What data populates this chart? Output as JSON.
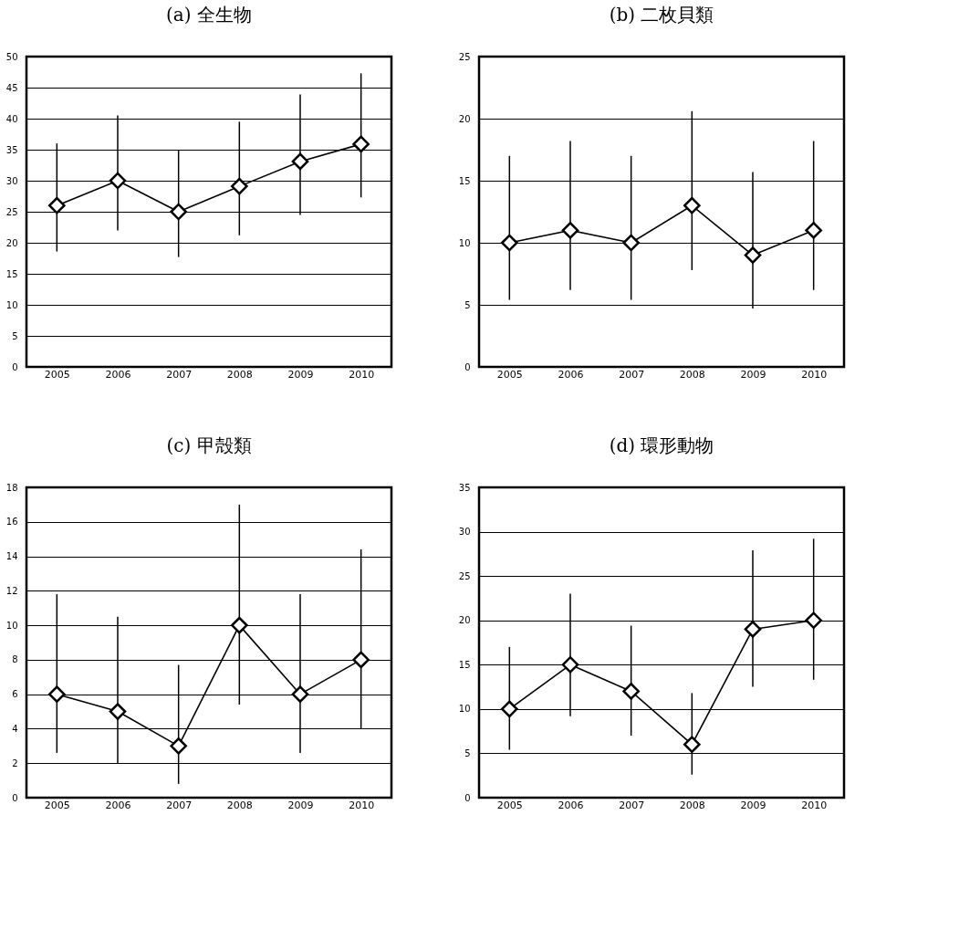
{
  "chart_data": [
    {
      "type": "line",
      "title": "(a) 全生物",
      "categories": [
        "2005",
        "2006",
        "2007",
        "2008",
        "2009",
        "2010"
      ],
      "series": [
        {
          "color": "#000000",
          "values": [
            26,
            30,
            25,
            29.1,
            33.1,
            35.9
          ],
          "errors": [
            [
              18.6,
              36.0
            ],
            [
              22.0,
              40.5
            ],
            [
              17.7,
              35.0
            ],
            [
              21.2,
              39.5
            ],
            [
              24.5,
              43.9
            ],
            [
              27.3,
              47.3
            ]
          ]
        }
      ],
      "ylim": [
        0,
        50
      ],
      "yticks": [
        0,
        5,
        10,
        15,
        20,
        25,
        30,
        35,
        40,
        45,
        50
      ],
      "grid": "y",
      "marker": "diamond",
      "line_style": "solid"
    },
    {
      "type": "line",
      "title": "(b) 二枚貝類",
      "categories": [
        "2005",
        "2006",
        "2007",
        "2008",
        "2009",
        "2010"
      ],
      "series": [
        {
          "color": "#000000",
          "values": [
            10,
            11,
            10,
            13,
            9,
            11
          ],
          "errors": [
            [
              5.4,
              17.0
            ],
            [
              6.2,
              18.2
            ],
            [
              5.4,
              17.0
            ],
            [
              7.8,
              20.6
            ],
            [
              4.7,
              15.7
            ],
            [
              6.2,
              18.2
            ]
          ]
        }
      ],
      "ylim": [
        0,
        25
      ],
      "yticks": [
        0,
        5,
        10,
        15,
        20,
        25
      ],
      "grid": "y",
      "marker": "diamond",
      "line_style": "solid"
    },
    {
      "type": "line",
      "title": "(c) 甲殻類",
      "categories": [
        "2005",
        "2006",
        "2007",
        "2008",
        "2009",
        "2010"
      ],
      "series": [
        {
          "color": "#000000",
          "values": [
            6,
            5,
            3,
            10,
            6,
            8
          ],
          "errors": [
            [
              2.6,
              11.8
            ],
            [
              2.0,
              10.5
            ],
            [
              0.8,
              7.7
            ],
            [
              5.4,
              17.0
            ],
            [
              2.6,
              11.8
            ],
            [
              4.0,
              14.4
            ]
          ]
        }
      ],
      "ylim": [
        0,
        18
      ],
      "yticks": [
        0,
        2,
        4,
        6,
        8,
        10,
        12,
        14,
        16,
        18
      ],
      "grid": "y",
      "marker": "diamond",
      "line_style": "solid"
    },
    {
      "type": "line",
      "title": "(d) 環形動物",
      "categories": [
        "2005",
        "2006",
        "2007",
        "2008",
        "2009",
        "2010"
      ],
      "series": [
        {
          "color": "#000000",
          "values": [
            10,
            15,
            12,
            6,
            19,
            20
          ],
          "errors": [
            [
              5.4,
              17.0
            ],
            [
              9.2,
              23.0
            ],
            [
              7.0,
              19.4
            ],
            [
              2.6,
              11.8
            ],
            [
              12.5,
              27.9
            ],
            [
              13.3,
              29.2
            ]
          ]
        }
      ],
      "ylim": [
        0,
        35
      ],
      "yticks": [
        0,
        5,
        10,
        15,
        20,
        25,
        30,
        35
      ],
      "grid": "y",
      "marker": "diamond",
      "line_style": "solid"
    }
  ]
}
